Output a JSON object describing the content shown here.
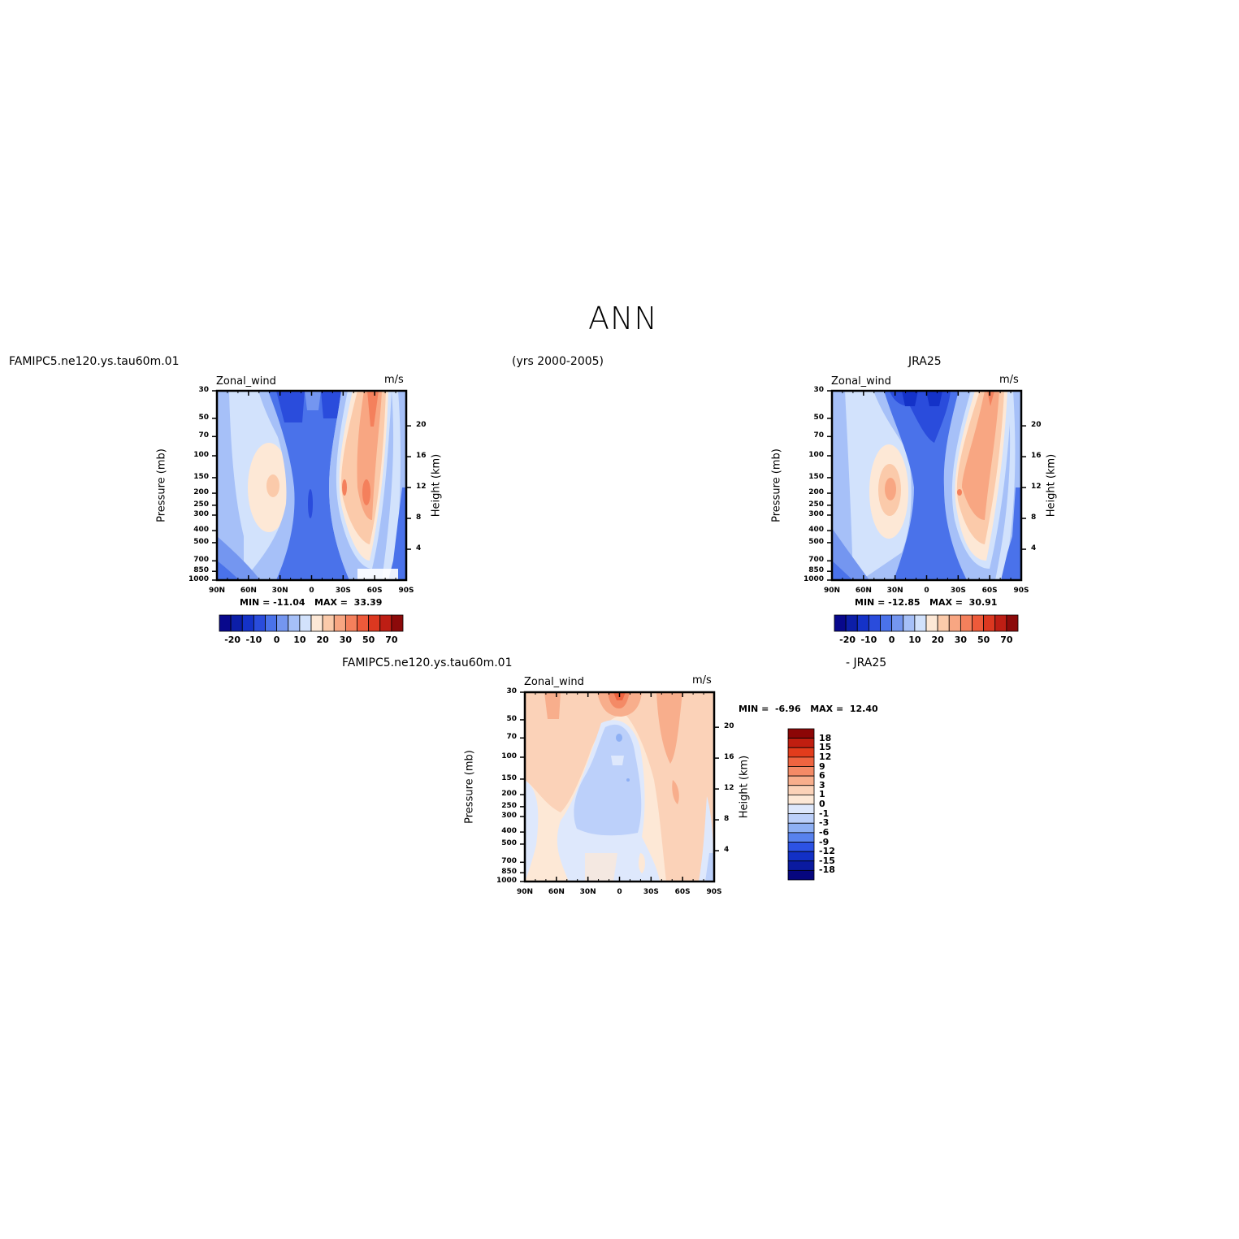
{
  "header": {
    "title": "ANN",
    "period": "(yrs 2000-2005)",
    "left_label": "FAMIPC5.ne120.ys.tau60m.01",
    "right_label": "JRA25",
    "diff_left_label": "FAMIPC5.ne120.ys.tau60m.01",
    "diff_right_label": "- JRA25"
  },
  "colors": {
    "abs": [
      "#08088c",
      "#0c1ea8",
      "#1432c8",
      "#2a4cdc",
      "#4a72ea",
      "#7496f0",
      "#a6c0f8",
      "#d2e2fc",
      "#fde8d6",
      "#fbcaaa",
      "#f8a682",
      "#f4805c",
      "#ee5a3a",
      "#dc3820",
      "#be1e14",
      "#8c0a0a"
    ],
    "diff": [
      "#06067e",
      "#0a1aa0",
      "#1230c6",
      "#2c52e4",
      "#5882ee",
      "#8eb0f4",
      "#bcd0fa",
      "#dee8fc",
      "#fde8d6",
      "#fbd2b8",
      "#f8ae8c",
      "#f48a66",
      "#ef6440",
      "#e23c1c",
      "#c01e10",
      "#8c0606"
    ]
  },
  "chart_data": [
    {
      "type": "heatmap",
      "name": "model",
      "title": "Zonal_wind",
      "units": "m/s",
      "xlabel": "",
      "ylabel": "Pressure (mb)",
      "ylabel_right": "Height (km)",
      "x_ticks": [
        "90N",
        "60N",
        "30N",
        "0",
        "30S",
        "60S",
        "90S"
      ],
      "y_ticks": [
        "30",
        "50",
        "70",
        "100",
        "150",
        "200",
        "250",
        "300",
        "400",
        "500",
        "700",
        "850",
        "1000"
      ],
      "y_right_ticks": [
        "20",
        "16",
        "12",
        "8",
        "4"
      ],
      "stats": {
        "min_label": "MIN =",
        "min": "-11.04",
        "max_label": "MAX =",
        "max": "33.39"
      },
      "colorbar_labels": [
        "-20",
        "-10",
        "0",
        "10",
        "20",
        "30",
        "50",
        "70"
      ],
      "fields": [
        {
          "lat": -45,
          "p": 200,
          "value": 33.39
        },
        {
          "lat": 40,
          "p": 180,
          "value": 23
        },
        {
          "lat": 0,
          "p": 250,
          "value": -11.04
        }
      ]
    },
    {
      "type": "heatmap",
      "name": "obs",
      "title": "Zonal_wind",
      "units": "m/s",
      "xlabel": "",
      "ylabel": "Pressure (mb)",
      "ylabel_right": "Height (km)",
      "x_ticks": [
        "90N",
        "60N",
        "30N",
        "0",
        "30S",
        "60S",
        "90S"
      ],
      "y_ticks": [
        "30",
        "50",
        "70",
        "100",
        "150",
        "200",
        "250",
        "300",
        "400",
        "500",
        "700",
        "850",
        "1000"
      ],
      "y_right_ticks": [
        "20",
        "16",
        "12",
        "8",
        "4"
      ],
      "stats": {
        "min_label": "MIN =",
        "min": "-12.85",
        "max_label": "MAX =",
        "max": "30.91"
      },
      "colorbar_labels": [
        "-20",
        "-10",
        "0",
        "10",
        "20",
        "30",
        "50",
        "70"
      ],
      "fields": [
        {
          "lat": -42,
          "p": 200,
          "value": 30.91
        },
        {
          "lat": 40,
          "p": 190,
          "value": 24
        },
        {
          "lat": 10,
          "p": 40,
          "value": -12.85
        }
      ]
    },
    {
      "type": "heatmap",
      "name": "difference",
      "title": "Zonal_wind",
      "units": "m/s",
      "xlabel": "",
      "ylabel": "Pressure (mb)",
      "ylabel_right": "Height (km)",
      "x_ticks": [
        "90N",
        "60N",
        "30N",
        "0",
        "30S",
        "60S",
        "90S"
      ],
      "y_ticks": [
        "30",
        "50",
        "70",
        "100",
        "150",
        "200",
        "250",
        "300",
        "400",
        "500",
        "700",
        "850",
        "1000"
      ],
      "y_right_ticks": [
        "20",
        "16",
        "12",
        "8",
        "4"
      ],
      "stats": {
        "min_label": "MIN =",
        "min": "-6.96",
        "max_label": "MAX =",
        "max": "12.40"
      },
      "colorbar_labels": [
        "18",
        "15",
        "12",
        "9",
        "6",
        "3",
        "1",
        "0",
        "-1",
        "-3",
        "-6",
        "-9",
        "-12",
        "-15",
        "-18"
      ],
      "fields": [
        {
          "lat": 0,
          "p": 30,
          "value": 12.4
        },
        {
          "lat": 10,
          "p": 250,
          "value": -6.96
        }
      ]
    }
  ]
}
